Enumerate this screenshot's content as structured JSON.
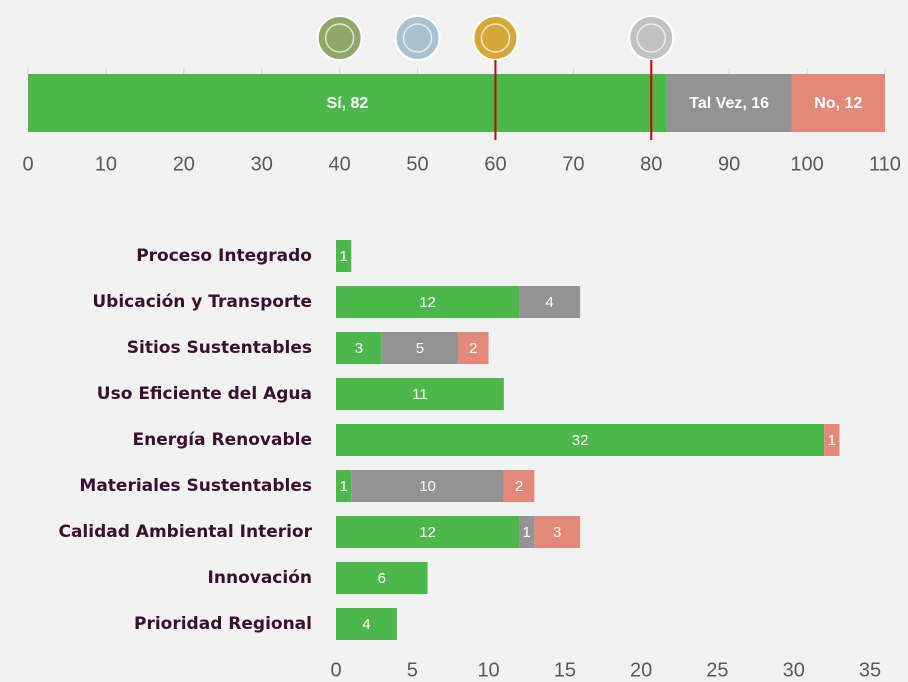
{
  "chart_data": [
    {
      "type": "stacked-bar-h",
      "xlim": [
        0,
        110
      ],
      "xticks": [
        0,
        10,
        20,
        30,
        40,
        50,
        60,
        70,
        80,
        90,
        100,
        110
      ],
      "series": [
        {
          "color": "#4cb84c",
          "values": [
            82
          ],
          "value_labels": [
            "Sí, 82"
          ]
        },
        {
          "color": "#939393",
          "values": [
            16
          ],
          "value_labels": [
            "Tal Vez, 16"
          ]
        },
        {
          "color": "#e4887a",
          "values": [
            12
          ],
          "value_labels": [
            "No, 12"
          ]
        }
      ],
      "levels": [
        40,
        50,
        60,
        80
      ],
      "level_colors": [
        "#8fa86a",
        "#a9c1d1",
        "#d6a83a",
        "#c2c2c2"
      ],
      "lines": [
        60,
        80
      ],
      "line_color": "#cc0000"
    },
    {
      "type": "stacked-bar-h",
      "categories": [
        "Proceso Integrado",
        "Ubicación y Transporte",
        "Sitios Sustentables",
        "Uso Eficiente del Agua",
        "Energía Renovable",
        "Materiales Sustentables",
        "Calidad Ambiental Interior",
        "Innovación",
        "Prioridad Regional"
      ],
      "xlim": [
        0,
        35
      ],
      "xticks": [
        0,
        5,
        10,
        15,
        20,
        25,
        30,
        35
      ],
      "series": [
        {
          "color": "#4cb84c",
          "values": [
            1,
            12,
            3,
            11,
            32,
            1,
            12,
            6,
            4
          ]
        },
        {
          "color": "#939393",
          "values": [
            null,
            4,
            5,
            null,
            null,
            10,
            1,
            null,
            null
          ]
        },
        {
          "color": "#e4887a",
          "values": [
            null,
            null,
            2,
            null,
            1,
            2,
            3,
            null,
            null
          ]
        }
      ]
    }
  ]
}
